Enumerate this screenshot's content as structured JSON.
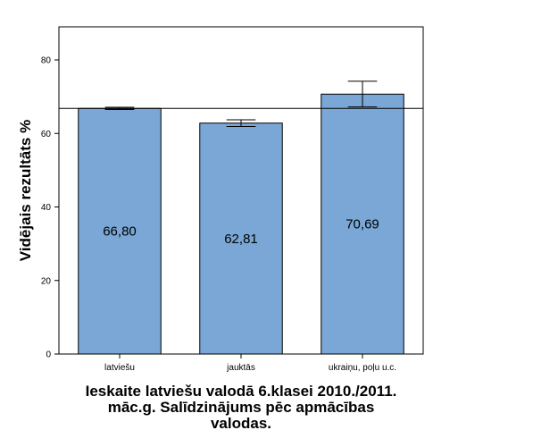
{
  "chart_data": {
    "type": "bar",
    "categories": [
      "latviešu",
      "jauktās",
      "ukraiņu, poļu u.c."
    ],
    "values": [
      66.8,
      62.81,
      70.69
    ],
    "value_labels": [
      "66,80",
      "62,81",
      "70,69"
    ],
    "error_bars": [
      {
        "low": 66.5,
        "high": 67.1
      },
      {
        "low": 61.9,
        "high": 63.7
      },
      {
        "low": 67.2,
        "high": 74.2
      }
    ],
    "reference_line": 66.8,
    "ylabel": "Vidējais rezultāts %",
    "xlabel_lines": [
      "Ieskaite latviešu valodā 6.klasei 2010./2011.",
      "māc.g. Salīdzinājums pēc apmācības",
      "valodas."
    ],
    "ylim": [
      0,
      89
    ],
    "yticks": [
      0,
      20,
      40,
      60,
      80
    ],
    "grid": false,
    "colors": {
      "bar": "#7aa7d6",
      "bar_stroke": "#000000"
    }
  }
}
